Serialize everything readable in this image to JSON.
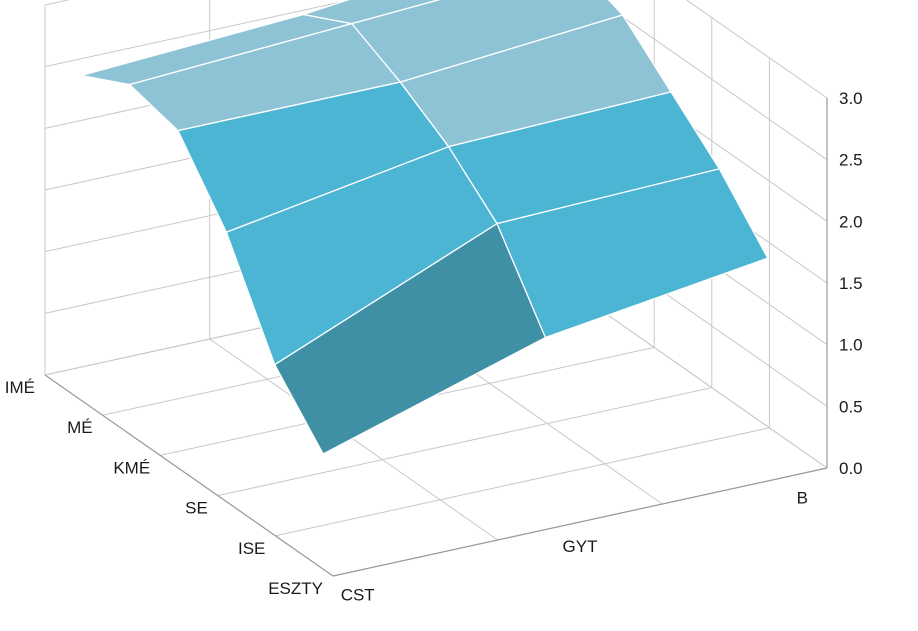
{
  "chart_data": {
    "type": "surface",
    "title": "",
    "rows": [
      "IMÉ",
      "MÉ",
      "KMÉ",
      "SE",
      "ISE",
      "ESZTY"
    ],
    "columns": [
      "CST",
      "GYT",
      "B"
    ],
    "z_axis": {
      "ticks": [
        "0.0",
        "0.5",
        "1.0",
        "1.5",
        "2.0",
        "2.5",
        "3.0"
      ],
      "range": [
        0,
        3
      ],
      "step": 0.5
    },
    "grid": true,
    "values": [
      [
        2.45,
        2.55,
        2.75
      ],
      [
        2.65,
        2.75,
        2.85
      ],
      [
        2.55,
        2.55,
        2.7
      ],
      [
        2.0,
        2.3,
        2.35
      ],
      [
        1.2,
        1.95,
        2.0
      ],
      [
        0.75,
        1.3,
        1.55
      ]
    ],
    "colors": {
      "surface_top": "#8ec3d6",
      "surface_mid": "#4bb5d3",
      "surface_low": "#3f8fa5",
      "grid_line": "#c8c8c8",
      "mesh_line": "#ffffff"
    }
  }
}
